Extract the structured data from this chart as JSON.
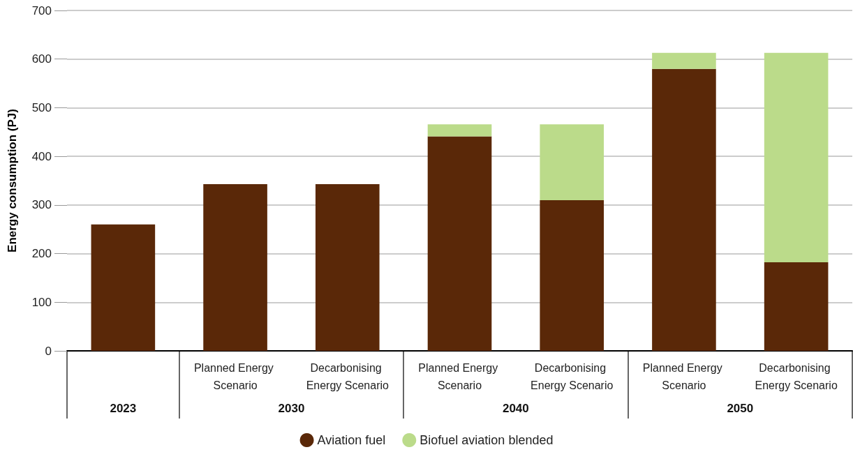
{
  "chart_data": {
    "type": "bar",
    "ylabel": "Energy consumption (PJ)",
    "categories": [
      null,
      "Planned Energy Scenario",
      "Decarbonising Energy Scenario",
      "Planned Energy Scenario",
      "Decarbonising Energy Scenario",
      "Planned Energy Scenario",
      "Decarbonising Energy Scenario"
    ],
    "series": [
      {
        "name": "Aviation fuel",
        "color": "#5a2808",
        "values": [
          260,
          343,
          343,
          441,
          310,
          580,
          182
        ]
      },
      {
        "name": "Biofuel aviation blended",
        "color": "#bbdb8a",
        "values": [
          0,
          0,
          0,
          25,
          156,
          33,
          431
        ]
      }
    ],
    "stacked": true,
    "annotations": [
      "2023",
      "2030",
      "2040",
      "2050"
    ],
    "ylim": [
      0,
      700
    ],
    "yticks": [
      0,
      100,
      200,
      300,
      400,
      500,
      600,
      700
    ],
    "grid": "y",
    "legend": "bottom"
  }
}
